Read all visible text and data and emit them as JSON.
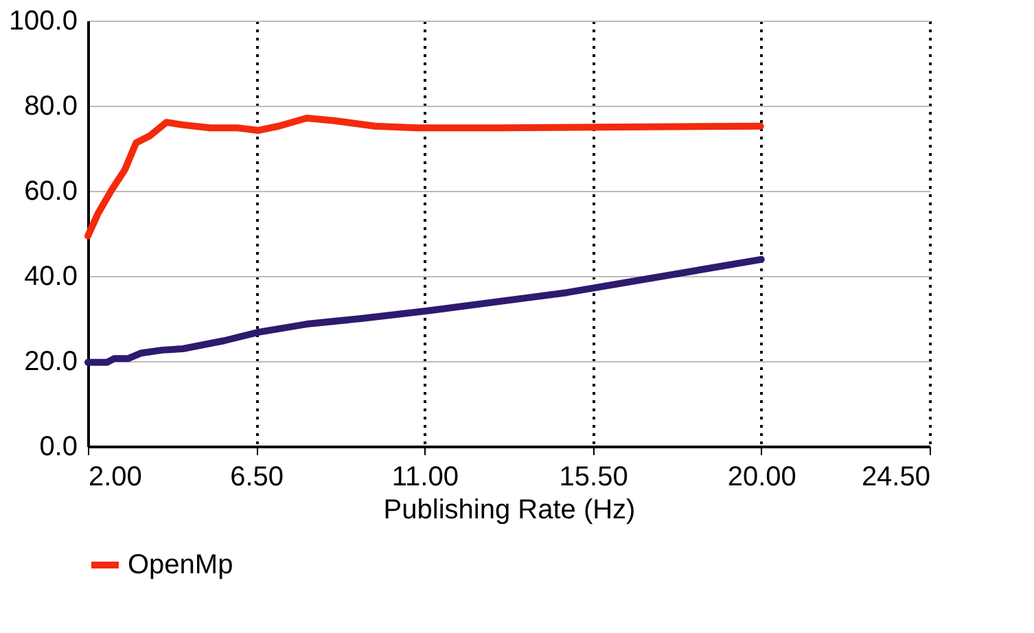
{
  "chart_data": {
    "type": "line",
    "xlabel": "Publishing Rate (Hz)",
    "xlim": [
      2.0,
      24.5
    ],
    "xticks": [
      {
        "value": 2.0,
        "label": "2.00"
      },
      {
        "value": 6.5,
        "label": "6.50"
      },
      {
        "value": 11.0,
        "label": "11.00"
      },
      {
        "value": 15.5,
        "label": "15.50"
      },
      {
        "value": 20.0,
        "label": "20.00"
      },
      {
        "value": 24.5,
        "label": "24.50"
      }
    ],
    "ylim": [
      0,
      100
    ],
    "yticks": [
      {
        "value": 0,
        "label": "0.0"
      },
      {
        "value": 20,
        "label": "20.0"
      },
      {
        "value": 40,
        "label": "40.0"
      },
      {
        "value": 60,
        "label": "60.0"
      },
      {
        "value": 80,
        "label": "80.0"
      },
      {
        "value": 100,
        "label": "100.0"
      }
    ],
    "grid": true,
    "legend": "bottom",
    "marker": "none",
    "line_style": "solid",
    "series": [
      {
        "name": "OpenMp",
        "color": "#f42a0c",
        "x": [
          2.0,
          2.26,
          2.62,
          2.99,
          3.29,
          3.65,
          4.1,
          4.54,
          5.27,
          6.0,
          6.56,
          7.1,
          7.85,
          8.58,
          9.68,
          10.79,
          12.99,
          19.98
        ],
        "values": [
          49.4,
          54.5,
          60,
          65,
          71.3,
          72.9,
          76.1,
          75.5,
          74.8,
          74.8,
          74.2,
          75.2,
          77.1,
          76.5,
          75.2,
          74.8,
          74.8,
          75.2
        ]
      },
      {
        "color": "#2e1a6e",
        "x": [
          2.0,
          2.51,
          2.7,
          3.07,
          3.43,
          3.99,
          4.54,
          5.64,
          6.56,
          7.85,
          9.3,
          11.15,
          14.8,
          20.0
        ],
        "values": [
          19.7,
          19.7,
          20.6,
          20.6,
          21.9,
          22.6,
          22.9,
          24.8,
          26.8,
          28.7,
          30,
          31.9,
          36.1,
          43.9
        ]
      }
    ]
  }
}
